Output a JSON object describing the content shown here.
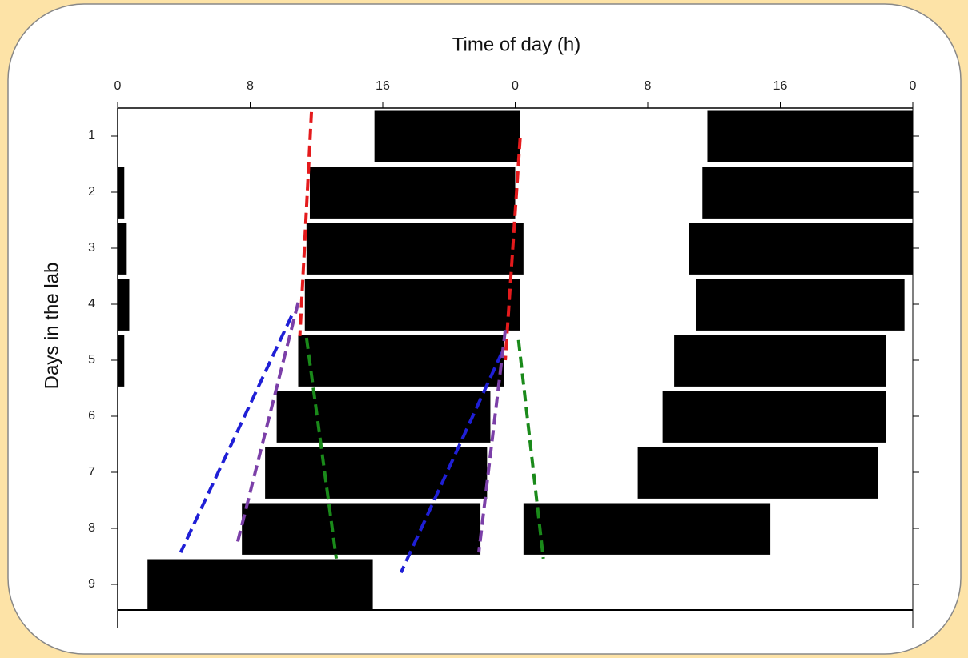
{
  "chart_data": {
    "type": "actogram",
    "title": "Time of day (h)",
    "y_label": "Days in the lab",
    "xlim": [
      0,
      48
    ],
    "xticks": [
      0,
      8,
      16,
      {
        "value": 24,
        "label": "0"
      },
      {
        "value": 32,
        "label": "8"
      },
      {
        "value": 40,
        "label": "16"
      },
      {
        "value": 48,
        "label": "0"
      }
    ],
    "ylim": [
      0.5,
      9.5
    ],
    "yticks": [
      1,
      2,
      3,
      4,
      5,
      6,
      7,
      8,
      9
    ],
    "bar_color": "#000000",
    "days": [
      {
        "day": 1,
        "bouts": [
          [
            15.5,
            24
          ],
          [
            24,
            24.3
          ],
          [
            35.6,
            48
          ]
        ]
      },
      {
        "day": 2,
        "bouts": [
          [
            0,
            0.4
          ],
          [
            11.6,
            24
          ],
          [
            35.3,
            48
          ]
        ]
      },
      {
        "day": 3,
        "bouts": [
          [
            0,
            0.5
          ],
          [
            11.4,
            24.5
          ],
          [
            34.5,
            48
          ]
        ]
      },
      {
        "day": 4,
        "bouts": [
          [
            0,
            0.7
          ],
          [
            11.3,
            24.3
          ],
          [
            34.9,
            47.5
          ]
        ]
      },
      {
        "day": 5,
        "bouts": [
          [
            0,
            0.4
          ],
          [
            10.9,
            23.3
          ],
          [
            33.6,
            46.4
          ]
        ]
      },
      {
        "day": 6,
        "bouts": [
          [
            9.6,
            22.5
          ],
          [
            32.9,
            46.4
          ]
        ]
      },
      {
        "day": 7,
        "bouts": [
          [
            8.9,
            22.3
          ],
          [
            31.4,
            45.9
          ]
        ]
      },
      {
        "day": 8,
        "bouts": [
          [
            7.5,
            21.9
          ],
          [
            24.5,
            39.4
          ]
        ]
      },
      {
        "day": 9,
        "bouts": [
          [
            1.8,
            15.4
          ]
        ]
      }
    ],
    "lines": [
      {
        "color": "#e41a1c",
        "x": [
          11.7,
          11.0
        ],
        "y": [
          0.57,
          4.57
        ]
      },
      {
        "color": "#e41a1c",
        "x": [
          24.3,
          23.4
        ],
        "y": [
          1.03,
          5.0
        ]
      },
      {
        "color": "#1f1fd6",
        "x": [
          10.5,
          3.8
        ],
        "y": [
          4.21,
          8.43
        ]
      },
      {
        "color": "#7b3fa8",
        "x": [
          10.9,
          7.2
        ],
        "y": [
          3.97,
          8.29
        ]
      },
      {
        "color": "#1a8a1a",
        "x": [
          11.4,
          13.2
        ],
        "y": [
          4.6,
          8.54
        ]
      },
      {
        "color": "#1f1fd6",
        "x": [
          23.2,
          17.1
        ],
        "y": [
          4.86,
          8.79
        ]
      },
      {
        "color": "#7b3fa8",
        "x": [
          23.4,
          21.8
        ],
        "y": [
          4.46,
          8.43
        ]
      },
      {
        "color": "#1a8a1a",
        "x": [
          24.2,
          25.7
        ],
        "y": [
          4.64,
          8.54
        ]
      }
    ]
  }
}
